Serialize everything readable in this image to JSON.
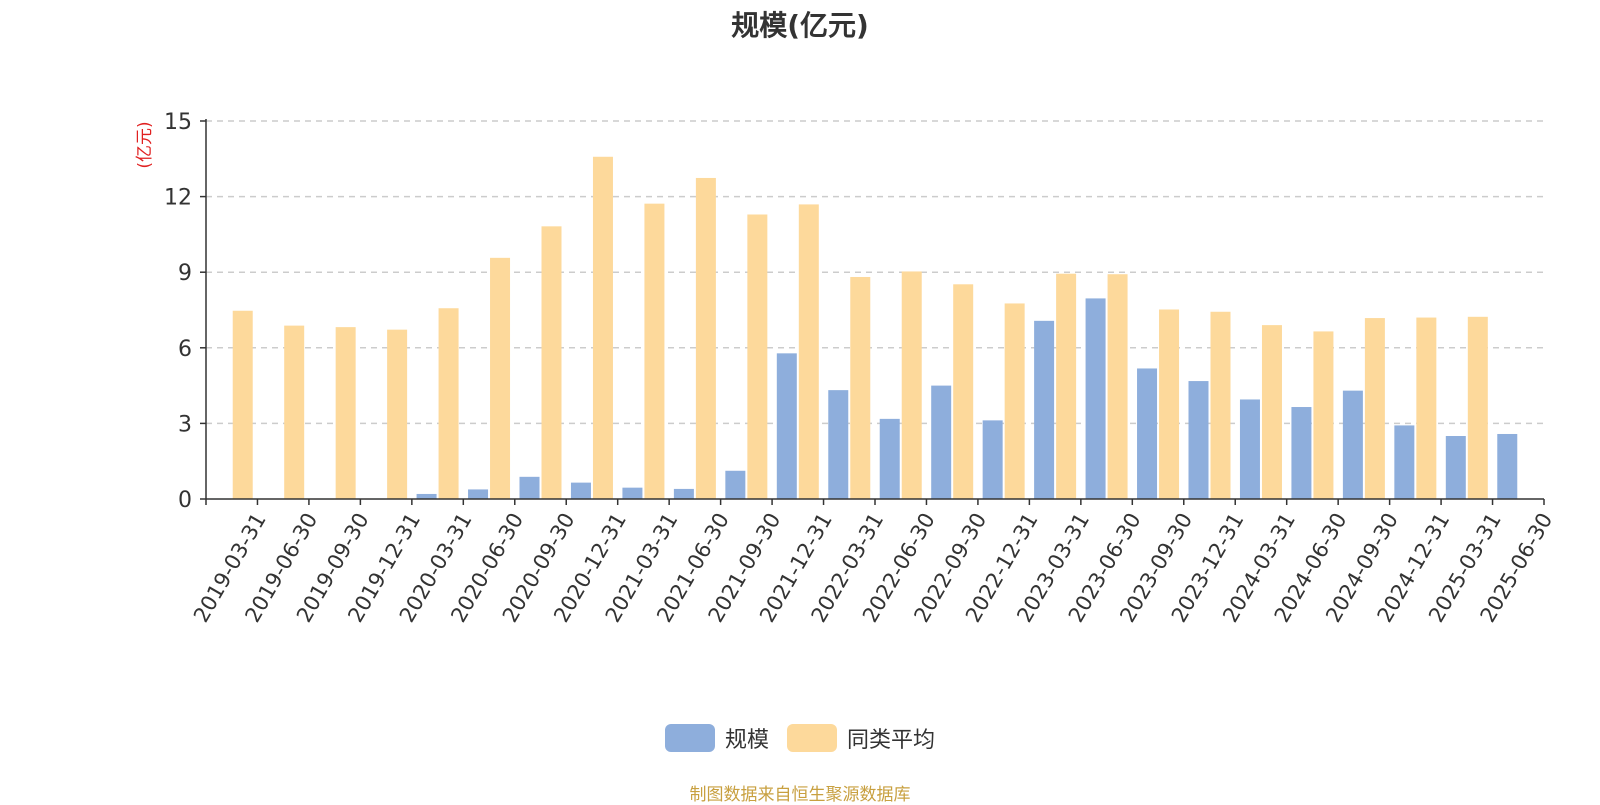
{
  "chart_data": {
    "type": "bar",
    "title": "规模(亿元)",
    "ylabel": "(亿元)",
    "xlabel": "",
    "ylim": [
      0,
      15
    ],
    "yticks": [
      0,
      3,
      6,
      9,
      12,
      15
    ],
    "grid": true,
    "legend_position": "bottom",
    "categories": [
      "2019-03-31",
      "2019-06-30",
      "2019-09-30",
      "2019-12-31",
      "2020-03-31",
      "2020-06-30",
      "2020-09-30",
      "2020-12-31",
      "2021-03-31",
      "2021-06-30",
      "2021-09-30",
      "2021-12-31",
      "2022-03-31",
      "2022-06-30",
      "2022-09-30",
      "2022-12-31",
      "2023-03-31",
      "2023-06-30",
      "2023-09-30",
      "2023-12-31",
      "2024-03-31",
      "2024-06-30",
      "2024-09-30",
      "2024-12-31",
      "2025-03-31",
      "2025-06-30"
    ],
    "series": [
      {
        "name": "规模",
        "color": "#8eaedc",
        "values": [
          0.01,
          0.02,
          0.01,
          0.01,
          0.2,
          0.38,
          0.88,
          0.65,
          0.45,
          0.4,
          1.12,
          5.78,
          4.32,
          3.18,
          4.5,
          3.12,
          7.07,
          7.96,
          5.18,
          4.68,
          3.95,
          3.65,
          4.3,
          2.92,
          2.5,
          2.58
        ]
      },
      {
        "name": "同类平均",
        "color": "#fdd99b",
        "values": [
          7.47,
          6.88,
          6.82,
          6.72,
          7.57,
          9.57,
          10.82,
          13.58,
          11.72,
          12.74,
          11.29,
          11.69,
          8.81,
          9.03,
          8.52,
          7.76,
          8.94,
          8.92,
          7.52,
          7.43,
          6.9,
          6.65,
          7.18,
          7.2,
          7.23,
          null
        ]
      }
    ]
  },
  "legend": {
    "items": [
      {
        "label": "规模",
        "color": "#8eaedc"
      },
      {
        "label": "同类平均",
        "color": "#fdd99b"
      }
    ]
  },
  "source_note": "制图数据来自恒生聚源数据库"
}
